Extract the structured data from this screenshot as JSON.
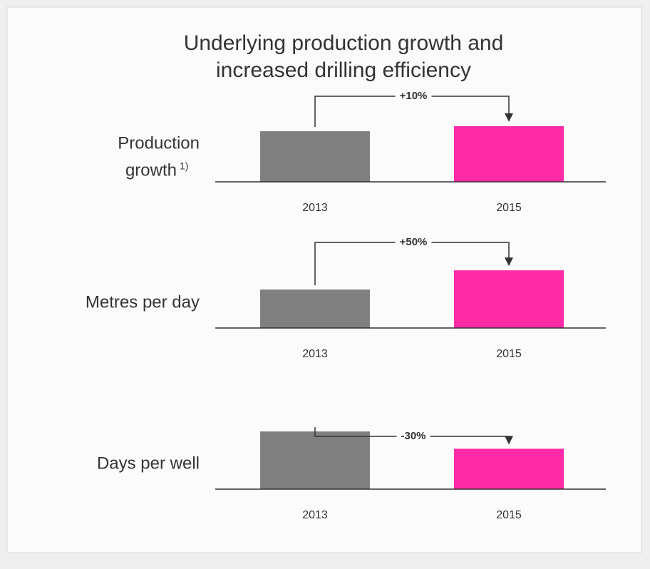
{
  "title": [
    "Underlying production growth and",
    "increased drilling efficiency"
  ],
  "chart_data": [
    {
      "type": "bar",
      "title": [
        "Production",
        "growth"
      ],
      "footnote_marker": "1)",
      "categories": [
        "2013",
        "2015"
      ],
      "values": [
        100,
        110
      ],
      "colors": [
        "#808080",
        "#ff2aa6"
      ],
      "ylim": [
        0,
        155
      ],
      "annotation": "+10%"
    },
    {
      "type": "bar",
      "title": [
        "Metres per day"
      ],
      "categories": [
        "2013",
        "2015"
      ],
      "values": [
        100,
        150
      ],
      "colors": [
        "#808080",
        "#ff2aa6"
      ],
      "ylim": [
        0,
        204
      ],
      "annotation": "+50%"
    },
    {
      "type": "bar",
      "title": [
        "Days per well"
      ],
      "categories": [
        "2013",
        "2015"
      ],
      "values": [
        100,
        70
      ],
      "colors": [
        "#808080",
        "#ff2aa6"
      ],
      "ylim": [
        0,
        136
      ],
      "annotation": "-30%"
    }
  ]
}
